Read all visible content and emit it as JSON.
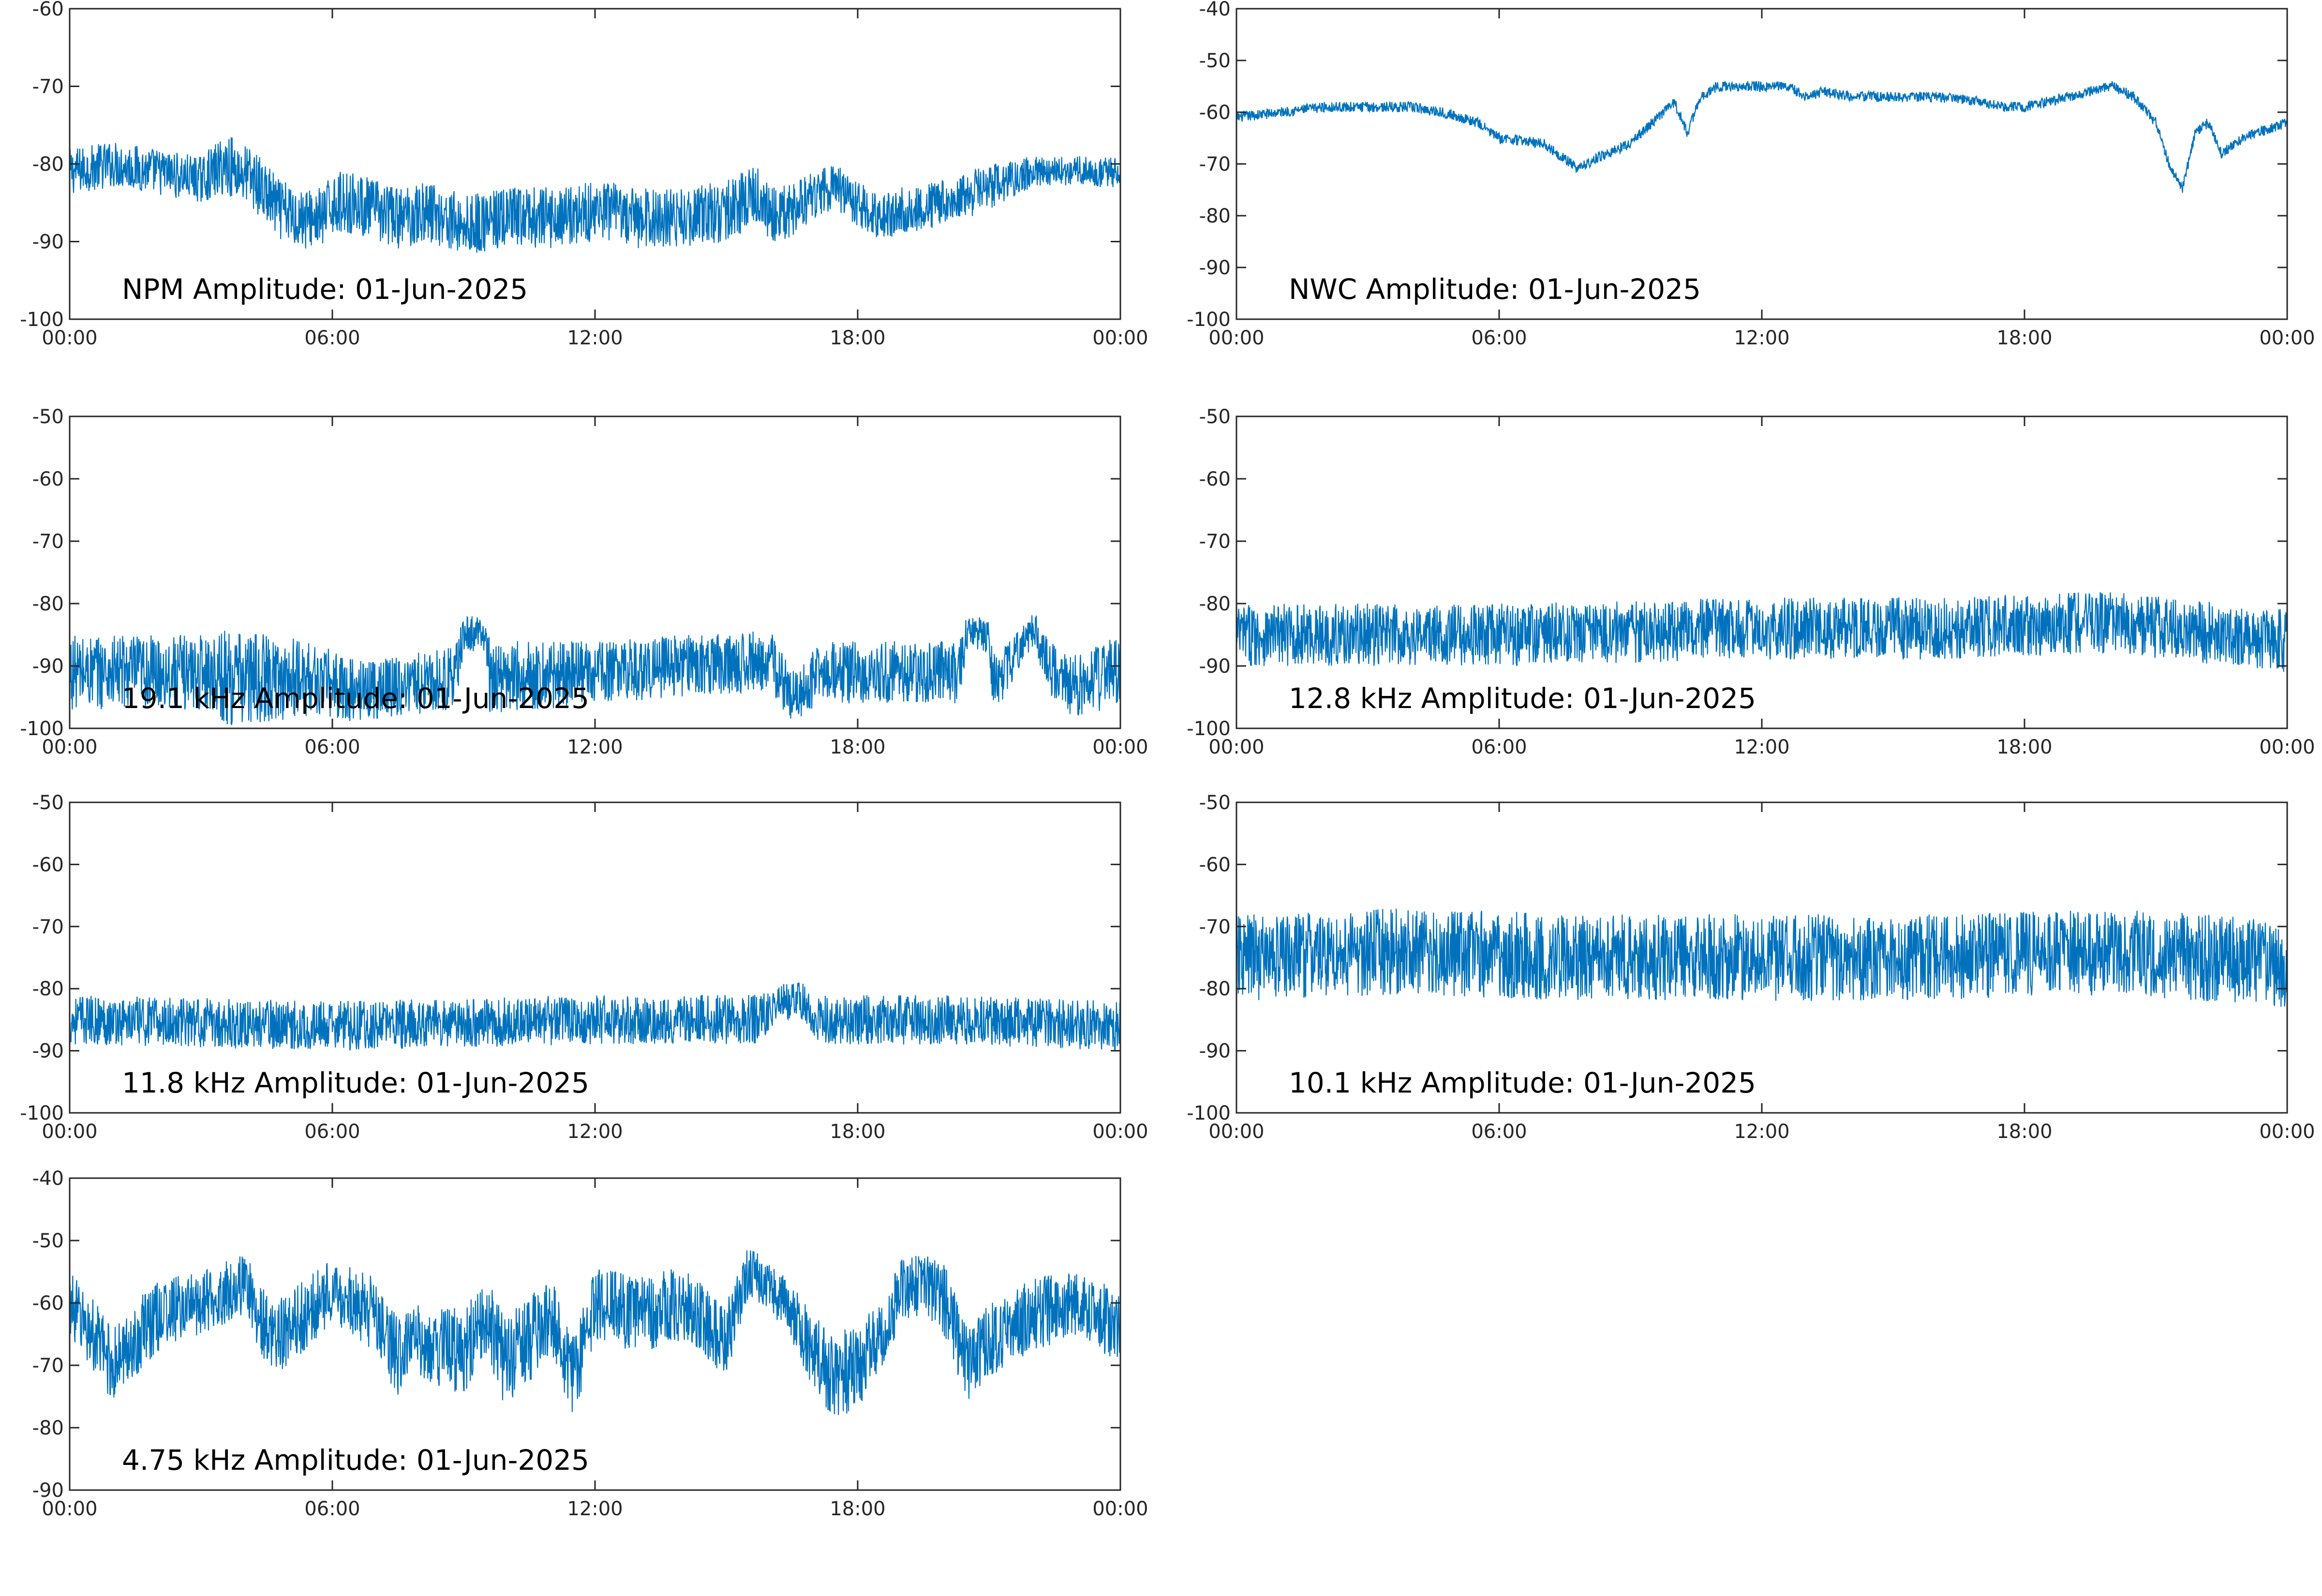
{
  "chart_data": [
    {
      "type": "line",
      "title": "NPM Amplitude: 01-Jun-2025",
      "x_ticks": [
        "00:00",
        "06:00",
        "12:00",
        "18:00",
        "00:00"
      ],
      "xlim_hours": [
        0,
        24
      ],
      "ylim": [
        -100,
        -60
      ],
      "y_ticks": [
        -60,
        -70,
        -80,
        -90,
        -100
      ],
      "color": "#0072BD",
      "series": [
        {
          "x": [
            0,
            1,
            2,
            3,
            3.6,
            4.2,
            4.8,
            5.3,
            5.8,
            6.0,
            6.5,
            7.5,
            8.2,
            9.0,
            10.0,
            11.0,
            12.0,
            13.0,
            14.0,
            15.0,
            15.7,
            16.2,
            17.0,
            17.5,
            18.0,
            18.5,
            19.0,
            20.0,
            21.0,
            22.0,
            23.0,
            24.0
          ],
          "y": [
            -81,
            -80,
            -81,
            -82,
            -80,
            -82,
            -86,
            -87,
            -87,
            -85,
            -85,
            -87,
            -86,
            -88,
            -87,
            -87,
            -86,
            -87,
            -87,
            -86,
            -84,
            -87,
            -84,
            -83,
            -85,
            -87,
            -86,
            -85,
            -83,
            -81,
            -81,
            -81
          ],
          "spread": [
            3,
            3,
            3,
            3,
            4,
            4,
            4,
            4,
            4,
            4,
            4,
            4,
            4,
            4,
            4,
            4,
            4,
            4,
            4,
            4,
            4,
            4,
            3,
            3,
            3,
            3,
            3,
            3,
            3,
            2,
            2,
            2
          ]
        }
      ]
    },
    {
      "type": "line",
      "title": "NWC Amplitude: 01-Jun-2025",
      "x_ticks": [
        "00:00",
        "06:00",
        "12:00",
        "18:00",
        "00:00"
      ],
      "xlim_hours": [
        0,
        24
      ],
      "ylim": [
        -100,
        -40
      ],
      "y_ticks": [
        -40,
        -50,
        -60,
        -70,
        -80,
        -90,
        -100
      ],
      "color": "#0072BD",
      "series": [
        {
          "x": [
            0,
            1,
            2,
            3,
            4,
            4.7,
            5.5,
            6.0,
            7.0,
            7.5,
            7.8,
            8.2,
            9.0,
            9.5,
            10.0,
            10.3,
            10.6,
            11.0,
            12.0,
            12.6,
            13.0,
            13.4,
            14.0,
            15.0,
            16.0,
            17.0,
            17.5,
            18.0,
            19.0,
            20.0,
            20.5,
            21.0,
            21.3,
            21.6,
            21.9,
            22.2,
            22.5,
            23.0,
            24.0
          ],
          "y": [
            -61,
            -60,
            -59,
            -59,
            -59,
            -60,
            -62,
            -65,
            -66,
            -69,
            -71,
            -69,
            -66,
            -62,
            -58,
            -64,
            -57,
            -55,
            -55,
            -55,
            -57,
            -56,
            -57,
            -57,
            -57,
            -58,
            -59,
            -59,
            -57,
            -55,
            -57,
            -62,
            -70,
            -75,
            -64,
            -62,
            -68,
            -65,
            -62
          ],
          "spread": [
            1,
            1,
            1,
            1,
            1,
            1,
            1,
            1,
            1,
            1,
            1,
            1,
            1,
            1,
            1,
            1,
            1,
            1,
            1,
            1,
            1,
            1,
            1,
            1,
            1,
            1,
            1,
            1,
            1,
            1,
            1,
            1,
            1,
            1,
            1,
            1,
            1,
            1,
            1
          ]
        }
      ]
    },
    {
      "type": "line",
      "title": "19.1 kHz Amplitude: 01-Jun-2025",
      "x_ticks": [
        "00:00",
        "06:00",
        "12:00",
        "18:00",
        "00:00"
      ],
      "xlim_hours": [
        0,
        24
      ],
      "ylim": [
        -100,
        -50
      ],
      "y_ticks": [
        -50,
        -60,
        -70,
        -80,
        -90,
        -100
      ],
      "color": "#0072BD",
      "series": [
        {
          "x": [
            0,
            2,
            3.4,
            3.5,
            5.5,
            6.5,
            8.8,
            9.0,
            9.5,
            9.6,
            12.0,
            16.0,
            16.5,
            17.2,
            20.3,
            20.5,
            21.0,
            21.1,
            22.0,
            22.6,
            23.0,
            24.0
          ],
          "y": [
            -91,
            -91,
            -91,
            -92,
            -92,
            -94,
            -92,
            -85,
            -85,
            -92,
            -91,
            -89,
            -95,
            -91,
            -91,
            -85,
            -85,
            -93,
            -84,
            -93,
            -93,
            -91
          ],
          "spread": [
            6,
            6,
            6,
            8,
            6,
            5,
            5,
            3,
            3,
            6,
            5,
            5,
            4,
            5,
            5,
            3,
            3,
            5,
            3,
            5,
            5,
            6
          ]
        }
      ]
    },
    {
      "type": "line",
      "title": "12.8 kHz Amplitude: 01-Jun-2025",
      "x_ticks": [
        "00:00",
        "06:00",
        "12:00",
        "18:00",
        "00:00"
      ],
      "xlim_hours": [
        0,
        24
      ],
      "ylim": [
        -100,
        -50
      ],
      "y_ticks": [
        -50,
        -60,
        -70,
        -80,
        -90,
        -100
      ],
      "color": "#0072BD",
      "series": [
        {
          "x": [
            0,
            6,
            12,
            16,
            20,
            24
          ],
          "y": [
            -85,
            -85,
            -84,
            -84,
            -83,
            -86
          ],
          "spread": [
            5,
            5,
            5,
            5,
            5,
            5
          ]
        }
      ]
    },
    {
      "type": "line",
      "title": "11.8 kHz Amplitude: 01-Jun-2025",
      "x_ticks": [
        "00:00",
        "06:00",
        "12:00",
        "18:00",
        "00:00"
      ],
      "xlim_hours": [
        0,
        24
      ],
      "ylim": [
        -100,
        -50
      ],
      "y_ticks": [
        -50,
        -60,
        -70,
        -80,
        -90,
        -100
      ],
      "color": "#0072BD",
      "series": [
        {
          "x": [
            0,
            6,
            12,
            15.8,
            16.2,
            16.8,
            17.0,
            20.0,
            24.0
          ],
          "y": [
            -85,
            -86,
            -85,
            -85,
            -82,
            -82,
            -85,
            -85,
            -86
          ],
          "spread": [
            4,
            4,
            4,
            4,
            3,
            3,
            4,
            4,
            4
          ]
        }
      ]
    },
    {
      "type": "line",
      "title": "10.1 kHz Amplitude: 01-Jun-2025",
      "x_ticks": [
        "00:00",
        "06:00",
        "12:00",
        "18:00",
        "00:00"
      ],
      "xlim_hours": [
        0,
        24
      ],
      "ylim": [
        -100,
        -50
      ],
      "y_ticks": [
        -50,
        -60,
        -70,
        -80,
        -90,
        -100
      ],
      "color": "#0072BD",
      "series": [
        {
          "x": [
            0,
            4,
            8,
            12,
            16,
            20,
            24
          ],
          "y": [
            -75,
            -74,
            -75,
            -75,
            -75,
            -74,
            -76
          ],
          "spread": [
            7,
            7,
            7,
            7,
            7,
            7,
            7
          ]
        }
      ]
    },
    {
      "type": "line",
      "title": "4.75 kHz Amplitude: 01-Jun-2025",
      "x_ticks": [
        "00:00",
        "06:00",
        "12:00",
        "18:00",
        "00:00"
      ],
      "xlim_hours": [
        0,
        24
      ],
      "ylim": [
        -90,
        -40
      ],
      "y_ticks": [
        -40,
        -50,
        -60,
        -70,
        -80,
        -90
      ],
      "color": "#0072BD",
      "series": [
        {
          "x": [
            0,
            0.6,
            1.0,
            2.0,
            3.0,
            4.0,
            4.6,
            5.2,
            6.0,
            7.0,
            7.5,
            8.0,
            9.0,
            9.5,
            10.0,
            11.0,
            11.5,
            12.0,
            13.0,
            14.0,
            15.0,
            15.5,
            16.0,
            16.5,
            17.0,
            17.5,
            18.0,
            18.5,
            19.0,
            19.5,
            20.0,
            20.5,
            21.0,
            22.0,
            23.0,
            24.0
          ],
          "y": [
            -60,
            -66,
            -70,
            -62,
            -60,
            -57,
            -66,
            -63,
            -58,
            -62,
            -69,
            -66,
            -68,
            -62,
            -70,
            -62,
            -72,
            -60,
            -62,
            -60,
            -66,
            -55,
            -57,
            -62,
            -68,
            -72,
            -70,
            -66,
            -58,
            -57,
            -60,
            -70,
            -66,
            -62,
            -60,
            -64
          ],
          "spread": [
            5,
            6,
            6,
            6,
            5,
            5,
            6,
            6,
            5,
            6,
            7,
            6,
            7,
            6,
            8,
            6,
            7,
            6,
            6,
            6,
            6,
            4,
            4,
            5,
            6,
            7,
            7,
            6,
            5,
            5,
            6,
            6,
            6,
            6,
            5,
            6
          ]
        }
      ]
    }
  ]
}
